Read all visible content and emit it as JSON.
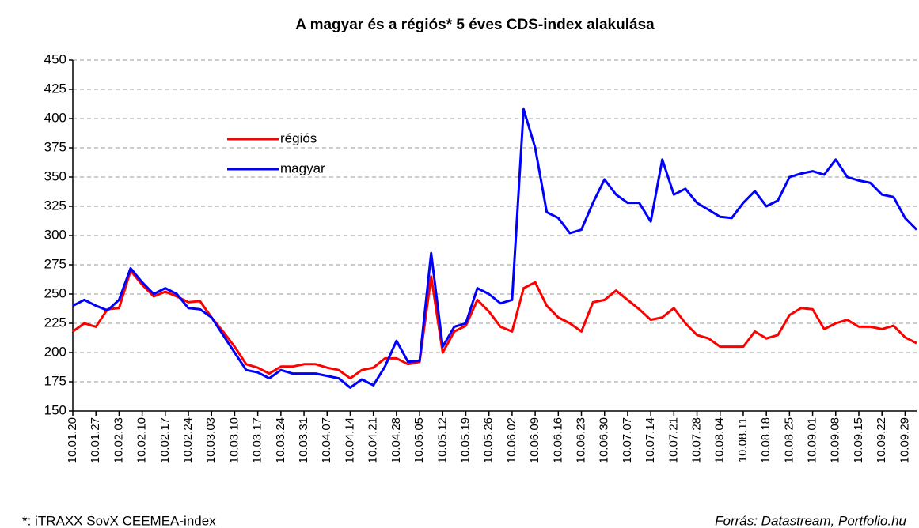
{
  "chart_data": {
    "type": "line",
    "title": "A magyar és a régiós* 5 éves CDS-index alakulása",
    "note": "*: iTRAXX SovX CEEMEA-index",
    "source": "Forrás: Datastream, Portfolio.hu",
    "categories": [
      "10.01.20",
      null,
      "10.01.27",
      null,
      "10.02.03",
      null,
      "10.02.10",
      null,
      "10.02.17",
      null,
      "10.02.24",
      null,
      "10.03.03",
      null,
      "10.03.10",
      null,
      "10.03.17",
      null,
      "10.03.24",
      null,
      "10.03.31",
      null,
      "10.04.07",
      null,
      "10.04.14",
      null,
      "10.04.21",
      null,
      "10.04.28",
      null,
      "10.05.05",
      null,
      "10.05.12",
      null,
      "10.05.19",
      null,
      "10.05.26",
      null,
      "10.06.02",
      null,
      "10.06.09",
      null,
      "10.06.16",
      null,
      "10.06.23",
      null,
      "10.06.30",
      null,
      "10.07.07",
      null,
      "10.07.14",
      null,
      "10.07.21",
      null,
      "10.07.28",
      null,
      "10.08.04",
      null,
      "10.08.11",
      null,
      "10.08.18",
      null,
      "10.08.25",
      null,
      "10.09.01",
      null,
      "10.09.08",
      null,
      "10.09.15",
      null,
      "10.09.22",
      null,
      "10.09.29",
      null
    ],
    "series": [
      {
        "name": "régiós",
        "color": "#ff0000",
        "values": [
          218,
          225,
          222,
          237,
          238,
          270,
          258,
          248,
          252,
          248,
          243,
          244,
          230,
          218,
          205,
          190,
          187,
          182,
          188,
          188,
          190,
          190,
          187,
          185,
          178,
          185,
          187,
          195,
          195,
          190,
          192,
          265,
          200,
          218,
          223,
          245,
          235,
          222,
          218,
          255,
          260,
          240,
          230,
          225,
          218,
          243,
          245,
          253,
          245,
          237,
          228,
          230,
          238,
          225,
          215,
          212,
          205,
          205,
          205,
          218,
          212,
          215,
          232,
          238,
          237,
          220,
          225,
          228,
          222,
          222,
          220,
          223,
          213,
          208
        ]
      },
      {
        "name": "magyar",
        "color": "#0000ff",
        "values": [
          240,
          245,
          240,
          236,
          245,
          272,
          260,
          250,
          255,
          250,
          238,
          237,
          230,
          215,
          200,
          185,
          183,
          178,
          185,
          182,
          182,
          182,
          180,
          178,
          170,
          177,
          172,
          188,
          210,
          192,
          193,
          285,
          205,
          222,
          225,
          255,
          250,
          242,
          245,
          408,
          375,
          320,
          315,
          302,
          305,
          328,
          348,
          335,
          328,
          328,
          312,
          365,
          335,
          340,
          328,
          322,
          316,
          315,
          328,
          338,
          325,
          330,
          350,
          353,
          355,
          352,
          365,
          350,
          347,
          345,
          335,
          333,
          315,
          305
        ]
      }
    ],
    "ylim": [
      150,
      450
    ],
    "yticks": [
      150,
      175,
      200,
      225,
      250,
      275,
      300,
      325,
      350,
      375,
      400,
      425,
      450
    ],
    "grid": true
  }
}
